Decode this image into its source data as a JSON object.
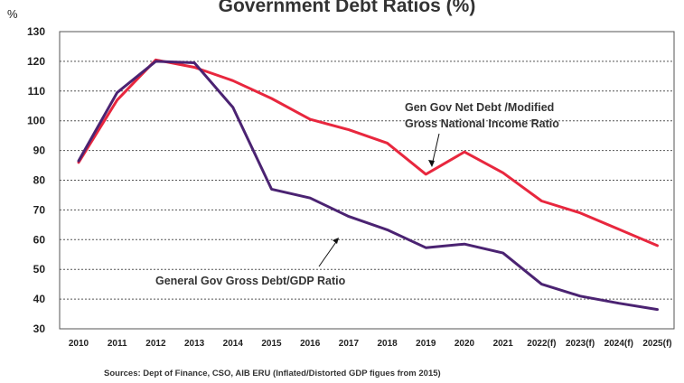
{
  "chart_data": {
    "type": "line",
    "title": "Government Debt Ratios (%)",
    "y_unit": "%",
    "ylim": [
      30,
      130
    ],
    "yticks": [
      30,
      40,
      50,
      60,
      70,
      80,
      90,
      100,
      110,
      120,
      130
    ],
    "categories": [
      "2010",
      "2011",
      "2012",
      "2013",
      "2014",
      "2015",
      "2016",
      "2017",
      "2018",
      "2019",
      "2020",
      "2021",
      "2022(f)",
      "2023(f)",
      "2024(f)",
      "2025(f)"
    ],
    "grid": true,
    "series": [
      {
        "name": "Gen Gov Net Debt /Modified Gross National Income Ratio",
        "annotation_lines": [
          "Gen Gov Net Debt /Modified",
          "Gross National Income Ratio"
        ],
        "color": "#e8273e",
        "values": [
          86,
          107,
          120.5,
          118,
          113.5,
          107.5,
          100.5,
          97,
          92.5,
          82,
          89.5,
          82.5,
          73,
          69,
          63.5,
          58
        ]
      },
      {
        "name": "General Gov Gross Debt/GDP Ratio",
        "annotation_lines": [
          "General Gov Gross Debt/GDP Ratio"
        ],
        "color": "#4b2372",
        "values": [
          86.5,
          109.5,
          120,
          119.5,
          104.5,
          77,
          74,
          67.8,
          63.3,
          57.3,
          58.5,
          55.5,
          45,
          41,
          38.6,
          36.5
        ]
      }
    ],
    "source": "Sources: Dept of Finance, CSO, AIB ERU (Inflated/Distorted GDP figues from 2015)"
  }
}
